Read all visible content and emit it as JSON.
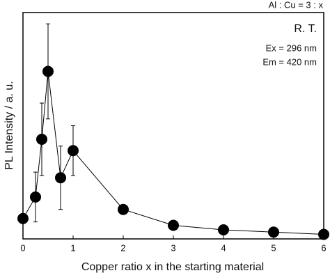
{
  "chart_data": {
    "type": "line",
    "x_label": "Copper ratio x in the starting material",
    "y_label": "PL Intensity / a. u.",
    "annotations": [
      "Al : Cu = 3 : x",
      "R. T.",
      "Ex  = 296 nm",
      "Em = 420 nm"
    ],
    "x": [
      0,
      0.25,
      0.375,
      0.5,
      0.75,
      1,
      2,
      3,
      4,
      5,
      6
    ],
    "series": [
      {
        "color": "#000000",
        "values": [
          9,
          18.5,
          44,
          74,
          27,
          39,
          13,
          6,
          4,
          3,
          2
        ],
        "errors": [
          null,
          11,
          16,
          21,
          14,
          11,
          null,
          null,
          null,
          null,
          null
        ]
      }
    ],
    "xlim": [
      0,
      6
    ],
    "xticks": [
      0,
      1,
      2,
      3,
      4,
      5,
      6
    ],
    "ylim": [
      0,
      100
    ],
    "grid": false
  }
}
